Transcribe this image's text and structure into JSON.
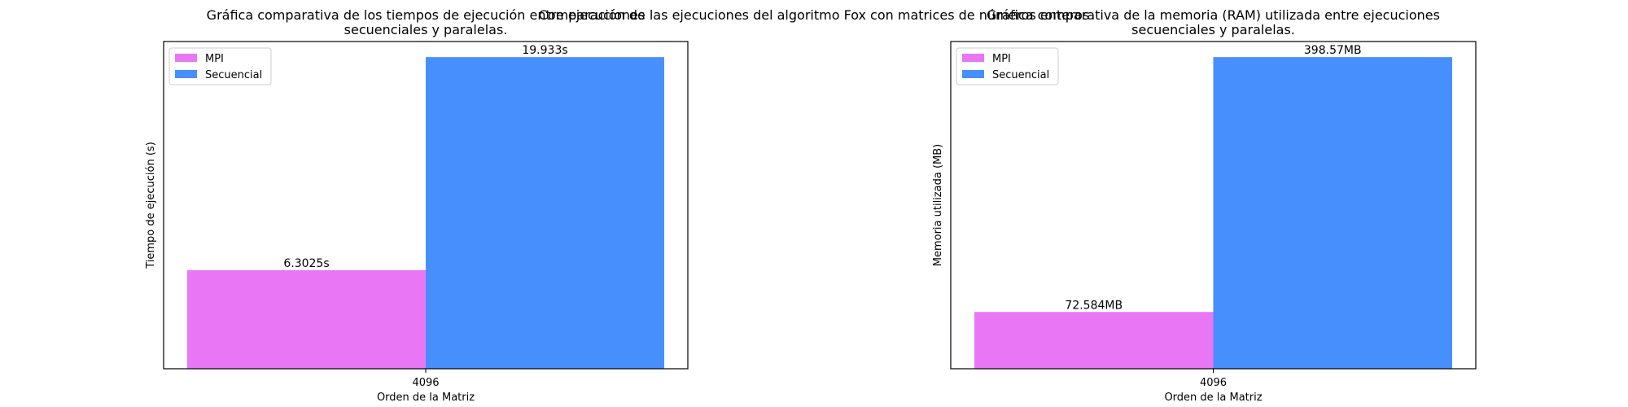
{
  "suptitle": "Comparación de las ejecuciones del algoritmo Fox con matrices de números enteros",
  "chart_data": [
    {
      "type": "bar",
      "title": [
        "Gráfica comparativa de los tiempos de ejecución entre ejecuciones",
        "secuenciales y paralelas."
      ],
      "xlabel": "Orden de la Matriz",
      "ylabel": "Tiempo de ejecución (s)",
      "categories": [
        "4096"
      ],
      "series": [
        {
          "name": "MPI",
          "values": [
            6.3025
          ],
          "labels": [
            "6.3025s"
          ],
          "color": "#e876f5"
        },
        {
          "name": "Secuencial",
          "values": [
            19.933
          ],
          "labels": [
            "19.933s"
          ],
          "color": "#478ffc"
        }
      ],
      "ylim": [
        0,
        20.93
      ],
      "legend": "upper-left",
      "yticks_visible": false,
      "grid": false
    },
    {
      "type": "bar",
      "title": [
        "Gráfica comparativa de la memoria (RAM) utilizada entre ejecuciones",
        "secuenciales y paralelas."
      ],
      "xlabel": "Orden de la Matriz",
      "ylabel": "Memoria utilizada (MB)",
      "categories": [
        "4096"
      ],
      "series": [
        {
          "name": "MPI",
          "values": [
            72.584
          ],
          "labels": [
            "72.584MB"
          ],
          "color": "#e876f5"
        },
        {
          "name": "Secuencial",
          "values": [
            398.57
          ],
          "labels": [
            "398.57MB"
          ],
          "color": "#478ffc"
        }
      ],
      "ylim": [
        0,
        418.5
      ],
      "legend": "upper-left",
      "yticks_visible": false,
      "grid": false
    }
  ]
}
